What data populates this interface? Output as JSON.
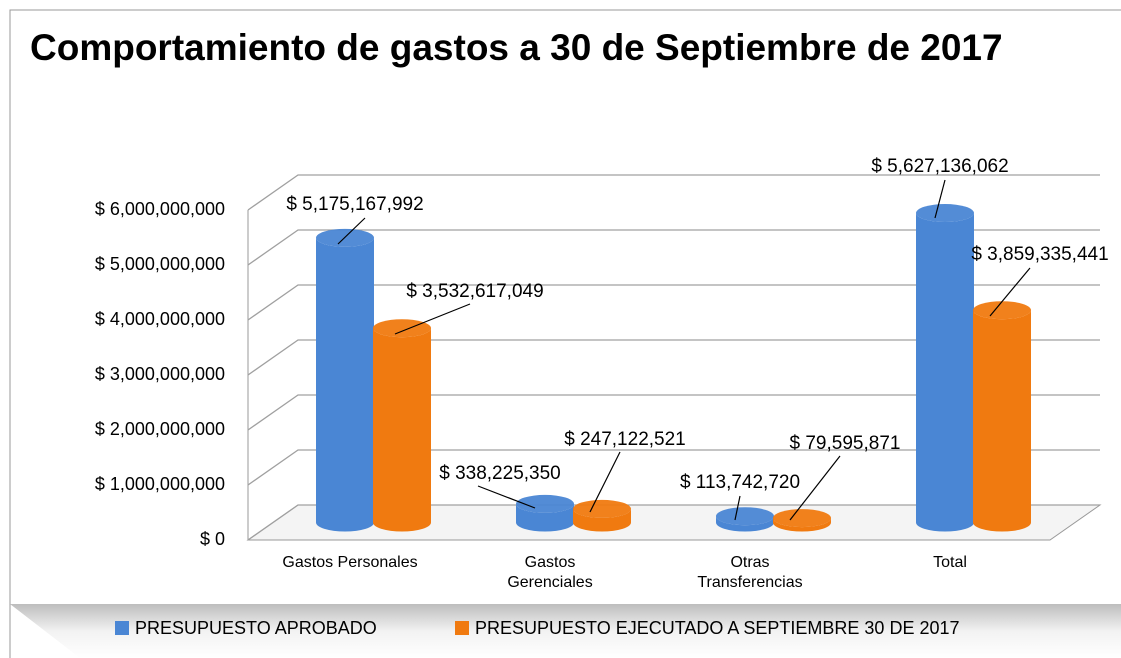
{
  "chart_data": {
    "type": "bar3d",
    "title": "Comportamiento de gastos a 30 de Septiembre de 2017",
    "categories": [
      "Gastos Personales",
      "Gastos Gerenciales",
      "Otras Transferencias",
      "Total"
    ],
    "series": [
      {
        "name": "PRESUPUESTO APROBADO",
        "color": "#4a86d4",
        "values": [
          5175167992,
          338225350,
          113742720,
          5627136062
        ],
        "value_labels": [
          "$ 5,175,167,992",
          "$ 338,225,350",
          "$ 113,742,720",
          "$ 5,627,136,062"
        ]
      },
      {
        "name": "PRESUPUESTO EJECUTADO A SEPTIEMBRE 30 DE 2017",
        "color": "#f07a10",
        "values": [
          3532617049,
          247122521,
          79595871,
          3859335441
        ],
        "value_labels": [
          "$ 3,532,617,049",
          "$ 247,122,521",
          "$ 79,595,871",
          "$ 3,859,335,441"
        ]
      }
    ],
    "ylim": [
      0,
      6000000000
    ],
    "yticks": [
      {
        "value": 0,
        "label": "$ 0"
      },
      {
        "value": 1000000000,
        "label": "$ 1,000,000,000"
      },
      {
        "value": 2000000000,
        "label": "$ 2,000,000,000"
      },
      {
        "value": 3000000000,
        "label": "$ 3,000,000,000"
      },
      {
        "value": 4000000000,
        "label": "$ 4,000,000,000"
      },
      {
        "value": 5000000000,
        "label": "$ 5,000,000,000"
      },
      {
        "value": 6000000000,
        "label": "$ 6,000,000,000"
      }
    ],
    "grid": true
  }
}
